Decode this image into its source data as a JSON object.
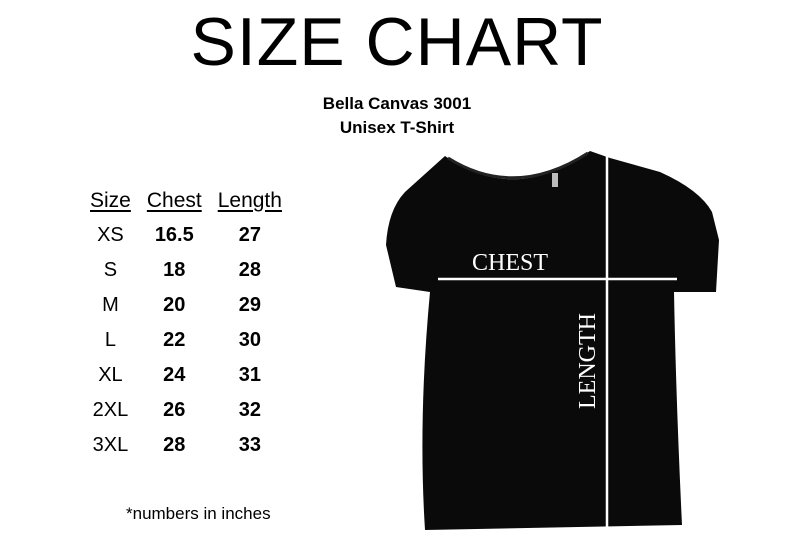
{
  "title": "SIZE CHART",
  "product_name": "Bella Canvas 3001",
  "product_type": "Unisex T-Shirt",
  "table": {
    "headers": [
      "Size",
      "Chest",
      "Length"
    ],
    "rows": [
      [
        "XS",
        "16.5",
        "27"
      ],
      [
        "S",
        "18",
        "28"
      ],
      [
        "M",
        "20",
        "29"
      ],
      [
        "L",
        "22",
        "30"
      ],
      [
        "XL",
        "24",
        "31"
      ],
      [
        "2XL",
        "26",
        "32"
      ],
      [
        "3XL",
        "28",
        "33"
      ]
    ]
  },
  "note": "*numbers in inches",
  "shirt": {
    "chest_label": "CHEST",
    "length_label": "LENGTH",
    "color": "#0a0a0a"
  }
}
